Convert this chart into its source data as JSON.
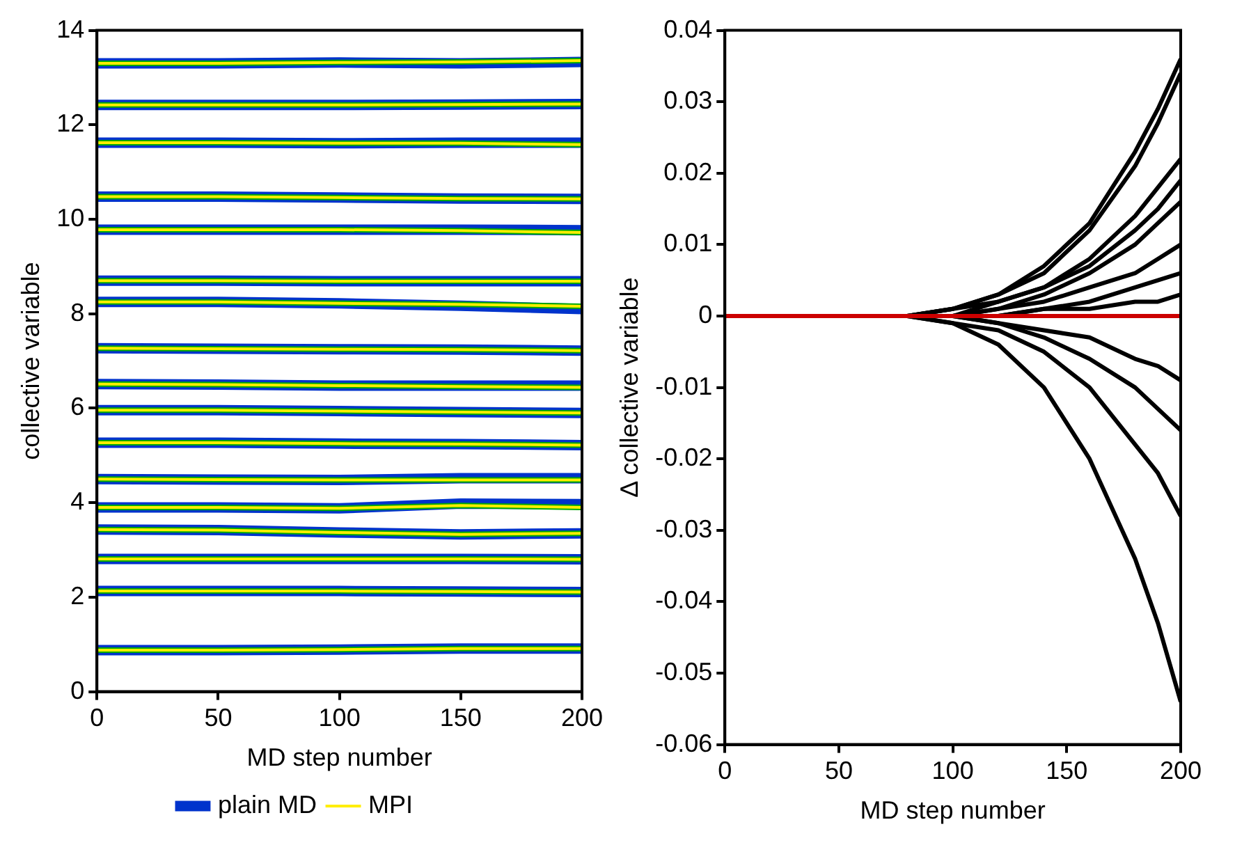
{
  "chart_data": [
    {
      "type": "line",
      "xlabel": "MD step number",
      "ylabel": "collective variable",
      "legend": "bottom",
      "x": [
        0,
        50,
        100,
        150,
        200
      ],
      "xlim": [
        0,
        200
      ],
      "xticks": [
        0,
        50,
        100,
        150,
        200
      ],
      "ylim": [
        0,
        14
      ],
      "yticks": [
        0,
        2,
        4,
        6,
        8,
        10,
        12,
        14
      ],
      "series": [
        {
          "name": "plain MD",
          "color": "#0033cc",
          "values": [
            13.3,
            13.3,
            13.32,
            13.3,
            13.33
          ]
        },
        {
          "color": "#00aa00",
          "values": [
            13.3,
            13.3,
            13.32,
            13.33,
            13.36
          ]
        },
        {
          "name": "MPI",
          "color": "#ffee00",
          "values": [
            13.3,
            13.3,
            13.32,
            13.33,
            13.36
          ]
        },
        {
          "color": "#0033cc",
          "values": [
            12.42,
            12.42,
            12.42,
            12.43,
            12.44
          ]
        },
        {
          "color": "#00aa00",
          "values": [
            12.42,
            12.42,
            12.42,
            12.43,
            12.44
          ]
        },
        {
          "color": "#ffee00",
          "values": [
            12.42,
            12.42,
            12.42,
            12.43,
            12.44
          ]
        },
        {
          "color": "#0033cc",
          "values": [
            11.62,
            11.62,
            11.61,
            11.62,
            11.62
          ]
        },
        {
          "color": "#00aa00",
          "values": [
            11.62,
            11.62,
            11.61,
            11.61,
            11.58
          ]
        },
        {
          "color": "#ffee00",
          "values": [
            11.62,
            11.62,
            11.61,
            11.61,
            11.58
          ]
        },
        {
          "color": "#0033cc",
          "values": [
            10.48,
            10.48,
            10.46,
            10.44,
            10.43
          ]
        },
        {
          "color": "#00aa00",
          "values": [
            10.48,
            10.48,
            10.46,
            10.44,
            10.43
          ]
        },
        {
          "color": "#ffee00",
          "values": [
            10.48,
            10.48,
            10.46,
            10.44,
            10.43
          ]
        },
        {
          "color": "#0033cc",
          "values": [
            9.78,
            9.78,
            9.78,
            9.78,
            9.77
          ]
        },
        {
          "color": "#00aa00",
          "values": [
            9.78,
            9.78,
            9.78,
            9.76,
            9.72
          ]
        },
        {
          "color": "#ffee00",
          "values": [
            9.78,
            9.78,
            9.78,
            9.76,
            9.72
          ]
        },
        {
          "color": "#0033cc",
          "values": [
            8.7,
            8.7,
            8.69,
            8.69,
            8.69
          ]
        },
        {
          "color": "#00aa00",
          "values": [
            8.7,
            8.7,
            8.69,
            8.69,
            8.69
          ]
        },
        {
          "color": "#ffee00",
          "values": [
            8.7,
            8.7,
            8.69,
            8.69,
            8.69
          ]
        },
        {
          "color": "#0033cc",
          "values": [
            8.25,
            8.25,
            8.22,
            8.17,
            8.1
          ]
        },
        {
          "color": "#00aa00",
          "values": [
            8.25,
            8.25,
            8.22,
            8.2,
            8.16
          ]
        },
        {
          "color": "#ffee00",
          "values": [
            8.25,
            8.25,
            8.22,
            8.2,
            8.16
          ]
        },
        {
          "color": "#0033cc",
          "values": [
            7.27,
            7.26,
            7.25,
            7.24,
            7.22
          ]
        },
        {
          "color": "#00aa00",
          "values": [
            7.27,
            7.26,
            7.25,
            7.24,
            7.22
          ]
        },
        {
          "color": "#ffee00",
          "values": [
            7.27,
            7.26,
            7.25,
            7.24,
            7.22
          ]
        },
        {
          "color": "#0033cc",
          "values": [
            6.51,
            6.5,
            6.48,
            6.48,
            6.48
          ]
        },
        {
          "color": "#00aa00",
          "values": [
            6.51,
            6.5,
            6.48,
            6.46,
            6.44
          ]
        },
        {
          "color": "#ffee00",
          "values": [
            6.51,
            6.5,
            6.48,
            6.46,
            6.44
          ]
        },
        {
          "color": "#0033cc",
          "values": [
            5.96,
            5.96,
            5.94,
            5.92,
            5.9
          ]
        },
        {
          "color": "#00aa00",
          "values": [
            5.96,
            5.96,
            5.94,
            5.92,
            5.9
          ]
        },
        {
          "color": "#ffee00",
          "values": [
            5.96,
            5.96,
            5.94,
            5.92,
            5.9
          ]
        },
        {
          "color": "#0033cc",
          "values": [
            5.27,
            5.27,
            5.25,
            5.24,
            5.22
          ]
        },
        {
          "color": "#00aa00",
          "values": [
            5.27,
            5.27,
            5.25,
            5.24,
            5.22
          ]
        },
        {
          "color": "#ffee00",
          "values": [
            5.27,
            5.27,
            5.25,
            5.24,
            5.22
          ]
        },
        {
          "color": "#0033cc",
          "values": [
            4.5,
            4.49,
            4.48,
            4.52,
            4.52
          ]
        },
        {
          "color": "#00aa00",
          "values": [
            4.5,
            4.49,
            4.48,
            4.48,
            4.48
          ]
        },
        {
          "color": "#ffee00",
          "values": [
            4.5,
            4.49,
            4.48,
            4.48,
            4.48
          ]
        },
        {
          "color": "#0033cc",
          "values": [
            3.9,
            3.9,
            3.88,
            3.98,
            3.97
          ]
        },
        {
          "color": "#00aa00",
          "values": [
            3.9,
            3.9,
            3.88,
            3.94,
            3.9
          ]
        },
        {
          "color": "#ffee00",
          "values": [
            3.9,
            3.9,
            3.88,
            3.94,
            3.9
          ]
        },
        {
          "color": "#0033cc",
          "values": [
            3.43,
            3.42,
            3.37,
            3.33,
            3.35
          ]
        },
        {
          "color": "#00aa00",
          "values": [
            3.43,
            3.42,
            3.37,
            3.33,
            3.35
          ]
        },
        {
          "color": "#ffee00",
          "values": [
            3.43,
            3.42,
            3.37,
            3.33,
            3.35
          ]
        },
        {
          "color": "#0033cc",
          "values": [
            2.81,
            2.81,
            2.81,
            2.81,
            2.8
          ]
        },
        {
          "color": "#00aa00",
          "values": [
            2.81,
            2.81,
            2.81,
            2.81,
            2.8
          ]
        },
        {
          "color": "#ffee00",
          "values": [
            2.81,
            2.81,
            2.81,
            2.81,
            2.8
          ]
        },
        {
          "color": "#0033cc",
          "values": [
            2.13,
            2.13,
            2.13,
            2.12,
            2.11
          ]
        },
        {
          "color": "#00aa00",
          "values": [
            2.13,
            2.13,
            2.13,
            2.12,
            2.11
          ]
        },
        {
          "color": "#ffee00",
          "values": [
            2.13,
            2.13,
            2.13,
            2.12,
            2.11
          ]
        },
        {
          "color": "#0033cc",
          "values": [
            0.88,
            0.88,
            0.89,
            0.91,
            0.91
          ]
        },
        {
          "color": "#00aa00",
          "values": [
            0.88,
            0.88,
            0.89,
            0.91,
            0.91
          ]
        },
        {
          "color": "#ffee00",
          "values": [
            0.88,
            0.88,
            0.89,
            0.91,
            0.91
          ]
        }
      ]
    },
    {
      "type": "line",
      "xlabel": "MD step number",
      "ylabel": "Δ collective variable",
      "x": [
        0,
        60,
        80,
        100,
        120,
        140,
        160,
        180,
        190,
        200
      ],
      "xlim": [
        0,
        200
      ],
      "xticks": [
        0,
        50,
        100,
        150,
        200
      ],
      "ylim": [
        -0.06,
        0.04
      ],
      "yticks": [
        -0.06,
        -0.05,
        -0.04,
        -0.03,
        -0.02,
        -0.01,
        0,
        0.01,
        0.02,
        0.03,
        0.04
      ],
      "series": [
        {
          "color": "#000000",
          "values": [
            0,
            0,
            0,
            0.001,
            0.003,
            0.007,
            0.013,
            0.023,
            0.029,
            0.036
          ]
        },
        {
          "color": "#000000",
          "values": [
            0,
            0,
            0,
            0.001,
            0.003,
            0.006,
            0.012,
            0.021,
            0.027,
            0.034
          ]
        },
        {
          "color": "#000000",
          "values": [
            0,
            0,
            0,
            0.001,
            0.002,
            0.004,
            0.008,
            0.014,
            0.018,
            0.022
          ]
        },
        {
          "color": "#000000",
          "values": [
            0,
            0,
            0,
            0,
            0.002,
            0.004,
            0.007,
            0.012,
            0.015,
            0.019
          ]
        },
        {
          "color": "#000000",
          "values": [
            0,
            0,
            0,
            0,
            0.001,
            0.003,
            0.006,
            0.01,
            0.013,
            0.016
          ]
        },
        {
          "color": "#000000",
          "values": [
            0,
            0,
            0,
            0,
            0.001,
            0.002,
            0.004,
            0.006,
            0.008,
            0.01
          ]
        },
        {
          "color": "#000000",
          "values": [
            0,
            0,
            0,
            0,
            0,
            0.001,
            0.002,
            0.004,
            0.005,
            0.006
          ]
        },
        {
          "color": "#000000",
          "values": [
            0,
            0,
            0,
            0,
            0,
            0.001,
            0.001,
            0.002,
            0.002,
            0.003
          ]
        },
        {
          "color": "#000000",
          "values": [
            0,
            0,
            0,
            0,
            -0.001,
            -0.002,
            -0.003,
            -0.006,
            -0.007,
            -0.009
          ]
        },
        {
          "color": "#000000",
          "values": [
            0,
            0,
            0,
            0,
            -0.001,
            -0.003,
            -0.006,
            -0.01,
            -0.013,
            -0.016
          ]
        },
        {
          "color": "#000000",
          "values": [
            0,
            0,
            0,
            -0.001,
            -0.002,
            -0.005,
            -0.01,
            -0.018,
            -0.022,
            -0.028
          ]
        },
        {
          "color": "#000000",
          "values": [
            0,
            0,
            0,
            -0.001,
            -0.004,
            -0.01,
            -0.02,
            -0.034,
            -0.043,
            -0.054
          ]
        },
        {
          "color": "#cc0000",
          "x": [
            0,
            200
          ],
          "values": [
            0,
            0
          ]
        }
      ]
    }
  ]
}
